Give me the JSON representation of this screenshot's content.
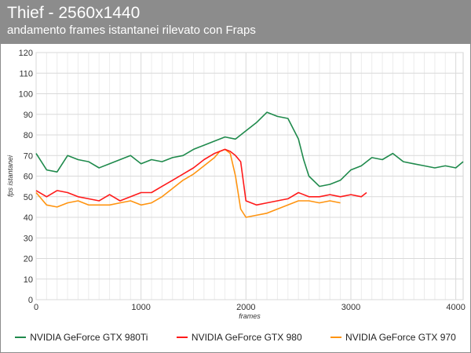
{
  "header": {
    "title": "Thief - 2560x1440",
    "subtitle": "andamento frames istantanei rilevato con Fraps"
  },
  "chart_data": {
    "type": "line",
    "title": "Thief - 2560x1440",
    "subtitle": "andamento frames istantanei rilevato con Fraps",
    "xlabel": "frames",
    "ylabel": "fps istantanei",
    "xlim": [
      0,
      4070
    ],
    "ylim": [
      0,
      120
    ],
    "xticks": [
      0,
      1000,
      2000,
      3000,
      4000
    ],
    "yticks": [
      0,
      10,
      20,
      30,
      40,
      50,
      60,
      70,
      80,
      90,
      100,
      110,
      120
    ],
    "grid": true,
    "legend_position": "bottom",
    "series": [
      {
        "name": "NVIDIA GeForce GTX 980Ti",
        "color": "#1f8a4c",
        "x": [
          0,
          100,
          200,
          300,
          400,
          500,
          600,
          700,
          800,
          900,
          1000,
          1100,
          1200,
          1300,
          1400,
          1500,
          1600,
          1700,
          1800,
          1900,
          2000,
          2100,
          2200,
          2300,
          2400,
          2500,
          2550,
          2600,
          2700,
          2800,
          2900,
          3000,
          3100,
          3200,
          3300,
          3400,
          3500,
          3600,
          3700,
          3800,
          3900,
          4000,
          4070
        ],
        "values": [
          71,
          63,
          62,
          70,
          68,
          67,
          64,
          66,
          68,
          70,
          66,
          68,
          67,
          69,
          70,
          73,
          75,
          77,
          79,
          78,
          82,
          86,
          91,
          89,
          88,
          78,
          68,
          60,
          55,
          56,
          58,
          63,
          65,
          69,
          68,
          71,
          67,
          66,
          65,
          64,
          65,
          64,
          67
        ]
      },
      {
        "name": "NVIDIA GeForce GTX 980",
        "color": "#ff1a1a",
        "x": [
          0,
          100,
          200,
          300,
          400,
          500,
          600,
          700,
          800,
          900,
          1000,
          1100,
          1200,
          1300,
          1400,
          1500,
          1600,
          1700,
          1800,
          1850,
          1900,
          1950,
          2000,
          2100,
          2200,
          2300,
          2400,
          2500,
          2600,
          2700,
          2800,
          2900,
          3000,
          3100,
          3150
        ],
        "values": [
          53,
          50,
          53,
          52,
          50,
          49,
          48,
          51,
          48,
          50,
          52,
          52,
          55,
          58,
          61,
          64,
          68,
          71,
          73,
          72,
          70,
          67,
          48,
          46,
          47,
          48,
          49,
          52,
          50,
          50,
          51,
          50,
          51,
          50,
          52
        ]
      },
      {
        "name": "NVIDIA GeForce GTX 970",
        "color": "#ff9410",
        "x": [
          0,
          100,
          200,
          300,
          400,
          500,
          600,
          700,
          800,
          900,
          1000,
          1100,
          1200,
          1300,
          1400,
          1500,
          1600,
          1700,
          1750,
          1800,
          1850,
          1900,
          1950,
          2000,
          2100,
          2200,
          2300,
          2400,
          2500,
          2600,
          2700,
          2800,
          2900
        ],
        "values": [
          52,
          46,
          45,
          47,
          48,
          46,
          46,
          46,
          47,
          48,
          46,
          47,
          50,
          54,
          58,
          61,
          65,
          69,
          72,
          73,
          71,
          60,
          44,
          40,
          41,
          42,
          44,
          46,
          48,
          48,
          47,
          48,
          47
        ]
      }
    ]
  }
}
